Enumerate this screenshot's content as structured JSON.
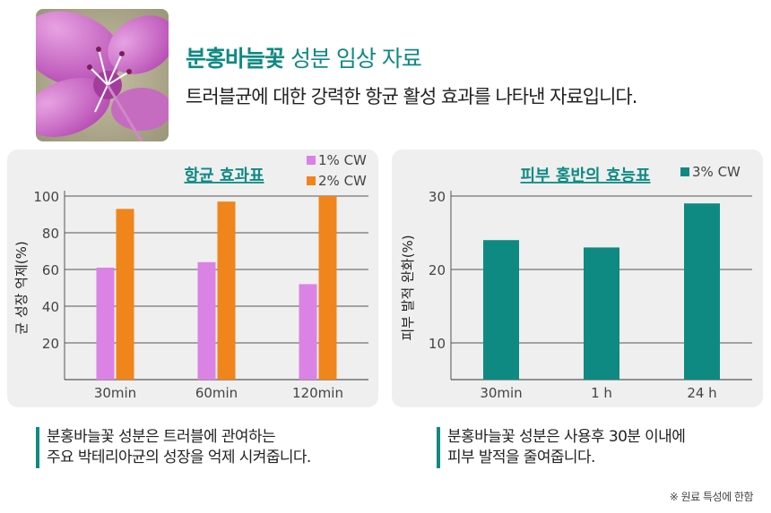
{
  "header": {
    "title_highlight": "분홍바늘꽃",
    "title_rest": " 성분 임상 자료",
    "subtitle": "트러블균에 대한 강력한 항균 활성 효과를 나타낸 자료입니다."
  },
  "colors": {
    "accent": "#0e8a83",
    "series_1": "#db82e5",
    "series_2": "#f0851b",
    "series_3": "#0e8a83"
  },
  "chart_data": [
    {
      "type": "bar",
      "title": "항균 효과표",
      "ylabel": "균 성장 억제(%)",
      "xlabel": "",
      "categories": [
        "30min",
        "60min",
        "120min"
      ],
      "series": [
        {
          "name": "1% CW",
          "values": [
            61,
            64,
            52
          ]
        },
        {
          "name": "2% CW",
          "values": [
            93,
            97,
            100
          ]
        }
      ],
      "yticks": [
        20,
        40,
        60,
        80,
        100
      ],
      "ylim": [
        0,
        100
      ],
      "grid": true,
      "legend": "top-right"
    },
    {
      "type": "bar",
      "title": "피부 홍반의 효능표",
      "ylabel": "피부 발적 완화(%)",
      "xlabel": "",
      "categories": [
        "30min",
        "1 h",
        "24 h"
      ],
      "series": [
        {
          "name": "3% CW",
          "values": [
            24,
            23,
            29
          ]
        }
      ],
      "yticks": [
        10,
        20,
        30
      ],
      "ylim": [
        5,
        30
      ],
      "grid": true,
      "legend": "top-right"
    }
  ],
  "notes": {
    "left": [
      "분홍바늘꽃 성분은 트러블에 관여하는",
      "주요 박테리아균의 성장을 억제 시켜줍니다."
    ],
    "right": [
      "분홍바늘꽃 성분은 사용후 30분 이내에",
      "피부 발적을 줄여줍니다."
    ]
  },
  "footnote": "※ 원료 특성에 한함"
}
